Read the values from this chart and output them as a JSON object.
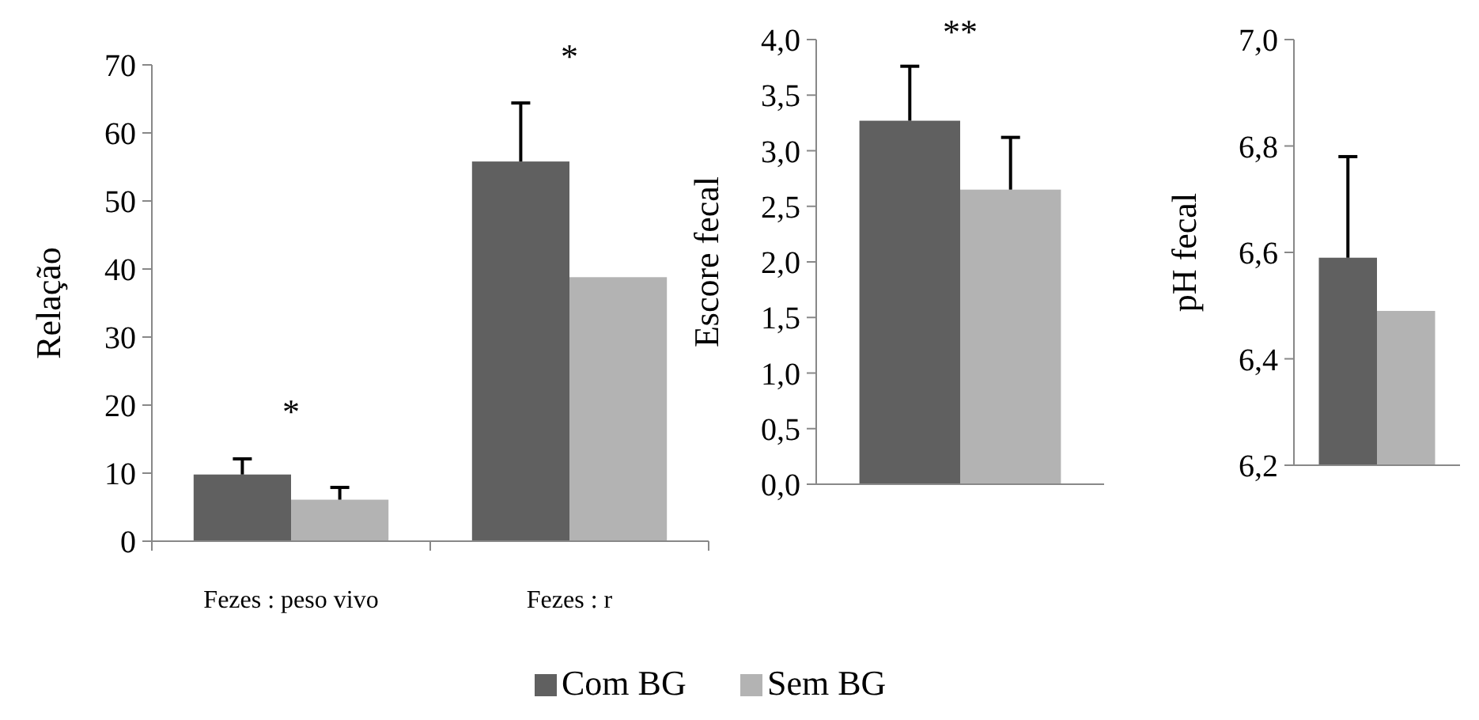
{
  "chart_data": [
    {
      "type": "bar",
      "ylabel": "Relação",
      "categories": [
        "Fezes : peso vivo",
        "Fezes : r"
      ],
      "ylim": [
        0,
        70
      ],
      "yticks": [
        0,
        10,
        20,
        30,
        40,
        50,
        60,
        70
      ],
      "legend": "bottom",
      "series": [
        {
          "name": "Com BG",
          "color": "#606060",
          "values": [
            9.8,
            55.8
          ],
          "errors": [
            2.3,
            8.6
          ]
        },
        {
          "name": "Sem BG",
          "color": "#b3b3b3",
          "values": [
            6.1,
            38.8
          ],
          "errors": [
            1.8,
            null
          ]
        }
      ],
      "annotations": [
        "*",
        "*"
      ]
    },
    {
      "type": "bar",
      "ylabel": "Escore fecal",
      "categories": [
        null
      ],
      "ylim": [
        0,
        4
      ],
      "yticks": [
        {
          "value": 0,
          "label": "0,0"
        },
        {
          "value": 0.5,
          "label": "0,5"
        },
        {
          "value": 1,
          "label": "1,0"
        },
        {
          "value": 1.5,
          "label": "1,5"
        },
        {
          "value": 2,
          "label": "2,0"
        },
        {
          "value": 2.5,
          "label": "2,5"
        },
        {
          "value": 3,
          "label": "3,0"
        },
        {
          "value": 3.5,
          "label": "3,5"
        },
        {
          "value": 4,
          "label": "4,0"
        }
      ],
      "series": [
        {
          "color": "#606060",
          "values": [
            3.27
          ],
          "errors": [
            0.49
          ]
        },
        {
          "color": "#b3b3b3",
          "values": [
            2.65
          ],
          "errors": [
            0.47
          ]
        }
      ],
      "annotations": [
        "**"
      ]
    },
    {
      "type": "bar",
      "ylabel": "pH fecal",
      "categories": [
        null
      ],
      "ylim": [
        6.2,
        7.0
      ],
      "yticks": [
        {
          "value": 6.2,
          "label": "6,2"
        },
        {
          "value": 6.4,
          "label": "6,4"
        },
        {
          "value": 6.6,
          "label": "6,6"
        },
        {
          "value": 6.8,
          "label": "6,8"
        },
        {
          "value": 7.0,
          "label": "7,0"
        }
      ],
      "series": [
        {
          "color": "#606060",
          "values": [
            6.59
          ],
          "errors": [
            0.19
          ]
        },
        {
          "color": "#b3b3b3",
          "values": [
            6.49
          ],
          "errors": [
            null
          ]
        }
      ]
    }
  ]
}
